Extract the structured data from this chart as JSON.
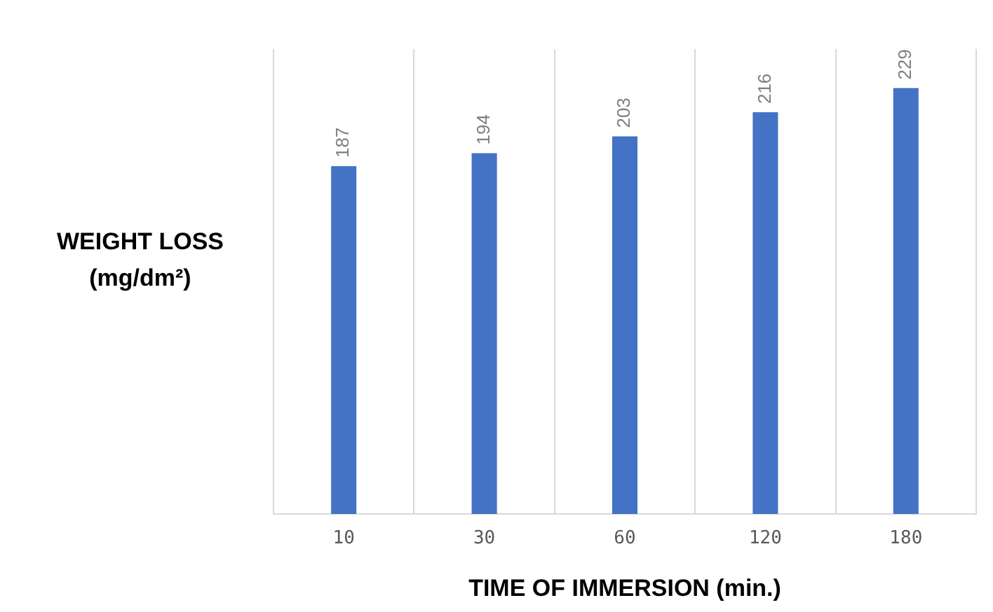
{
  "chart_data": {
    "type": "bar",
    "xlabel": "TIME OF IMMERSION (min.)",
    "ylabel": "WEIGHT LOSS (mg/dm²)",
    "categories": [
      "10",
      "30",
      "60",
      "120",
      "180"
    ],
    "values": [
      187,
      194,
      203,
      216,
      229
    ],
    "color": "#4472c4",
    "ylim": [
      0,
      250
    ],
    "tick_labels": "x",
    "data_labels": true,
    "grid": "x"
  }
}
